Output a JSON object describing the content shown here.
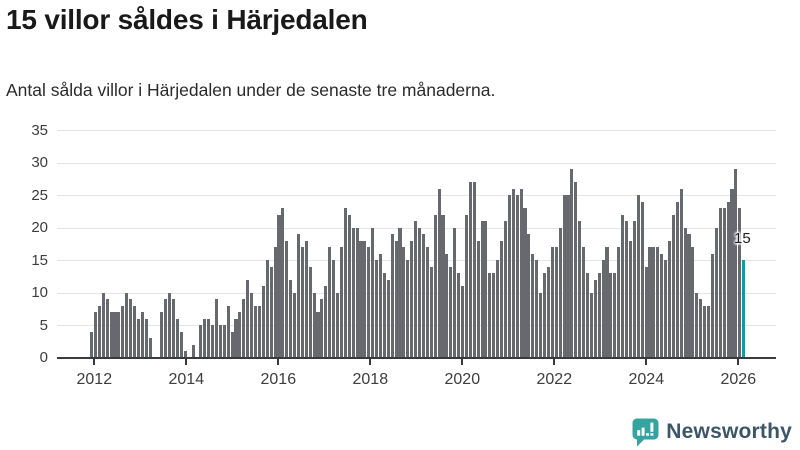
{
  "header": {
    "title": "15 villor såldes i Härjedalen",
    "subtitle": "Antal sålda villor i Härjedalen under de senaste tre månaderna."
  },
  "chart_data": {
    "type": "bar",
    "title": "15 villor såldes i Härjedalen",
    "subtitle": "Antal sålda villor i Härjedalen under de senaste tre månaderna.",
    "frequency": "monthly",
    "x_start": "2011-12",
    "x_tick_labels": [
      "2012",
      "2014",
      "2016",
      "2018",
      "2020",
      "2022",
      "2024",
      "2026"
    ],
    "y_ticks": [
      0,
      5,
      10,
      15,
      20,
      25,
      30,
      35
    ],
    "ylim": [
      0,
      35
    ],
    "grid": "horizontal",
    "bar_color": "#68686f",
    "highlight_color": "#00a1a7",
    "values": [
      4,
      7,
      8,
      10,
      9,
      7,
      7,
      7,
      8,
      10,
      9,
      8,
      6,
      7,
      6,
      3,
      0,
      0,
      7,
      9,
      10,
      9,
      6,
      4,
      1,
      0,
      2,
      0,
      5,
      6,
      6,
      5,
      9,
      5,
      5,
      8,
      4,
      6,
      7,
      9,
      12,
      10,
      8,
      8,
      11,
      15,
      14,
      17,
      22,
      23,
      18,
      12,
      10,
      19,
      17,
      18,
      14,
      10,
      7,
      9,
      11,
      17,
      15,
      10,
      17,
      23,
      22,
      20,
      20,
      18,
      18,
      17,
      20,
      15,
      16,
      13,
      12,
      19,
      18,
      20,
      17,
      15,
      18,
      21,
      20,
      19,
      17,
      14,
      22,
      26,
      22,
      16,
      14,
      20,
      13,
      11,
      22,
      27,
      27,
      18,
      21,
      21,
      13,
      13,
      15,
      18,
      21,
      25,
      26,
      25,
      26,
      23,
      19,
      16,
      15,
      10,
      13,
      14,
      17,
      17,
      20,
      25,
      25,
      29,
      27,
      21,
      17,
      13,
      10,
      12,
      13,
      15,
      17,
      13,
      13,
      17,
      22,
      21,
      18,
      21,
      25,
      24,
      14,
      17,
      17,
      17,
      16,
      15,
      18,
      22,
      24,
      26,
      20,
      19,
      17,
      10,
      9,
      8,
      8,
      16,
      20,
      23,
      23,
      24,
      26,
      29,
      23,
      15
    ],
    "highlight": {
      "index": 167,
      "value": 15,
      "label": "15"
    }
  },
  "footer": {
    "brand": "Newsworthy",
    "brand_color": "#35a49f",
    "brand_text_color": "#3c5668"
  }
}
